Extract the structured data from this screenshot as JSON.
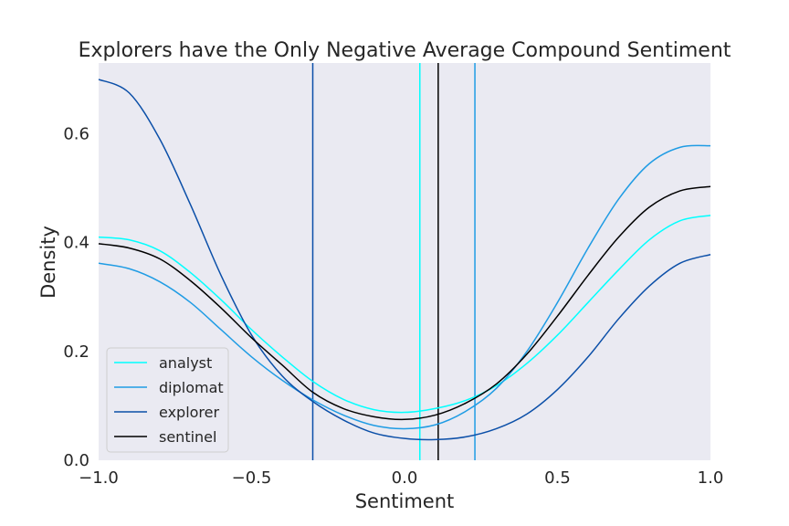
{
  "chart_data": {
    "type": "line",
    "title": "Explorers have the Only Negative Average Compound Sentiment",
    "xlabel": "Sentiment",
    "ylabel": "Density",
    "xlim": [
      -1.0,
      1.0
    ],
    "ylim": [
      0.0,
      0.73
    ],
    "xticks": [
      -1.0,
      -0.5,
      0.0,
      0.5,
      1.0
    ],
    "xtick_labels": [
      "−1.0",
      "−0.5",
      "0.0",
      "0.5",
      "1.0"
    ],
    "yticks": [
      0.0,
      0.2,
      0.4,
      0.6
    ],
    "ytick_labels": [
      "0.0",
      "0.2",
      "0.4",
      "0.6"
    ],
    "grid": false,
    "background_color": "#eaeaf2",
    "legend_position": "lower-left",
    "x": [
      -1.0,
      -0.9,
      -0.8,
      -0.7,
      -0.6,
      -0.5,
      -0.4,
      -0.3,
      -0.2,
      -0.1,
      0.0,
      0.1,
      0.2,
      0.3,
      0.4,
      0.5,
      0.6,
      0.7,
      0.8,
      0.9,
      1.0
    ],
    "series": [
      {
        "name": "analyst",
        "color": "#00ffff",
        "values": [
          0.41,
          0.405,
          0.385,
          0.345,
          0.295,
          0.24,
          0.19,
          0.145,
          0.112,
          0.093,
          0.088,
          0.095,
          0.11,
          0.137,
          0.178,
          0.23,
          0.29,
          0.35,
          0.405,
          0.44,
          0.45
        ],
        "mean": 0.05
      },
      {
        "name": "diplomat",
        "color": "#1f9ce4",
        "values": [
          0.362,
          0.352,
          0.328,
          0.29,
          0.24,
          0.19,
          0.147,
          0.111,
          0.083,
          0.064,
          0.058,
          0.065,
          0.09,
          0.132,
          0.2,
          0.29,
          0.39,
          0.48,
          0.545,
          0.575,
          0.578
        ],
        "mean": 0.23
      },
      {
        "name": "explorer",
        "color": "#0b4fa8",
        "values": [
          0.7,
          0.675,
          0.59,
          0.47,
          0.34,
          0.23,
          0.155,
          0.108,
          0.074,
          0.05,
          0.04,
          0.038,
          0.043,
          0.058,
          0.085,
          0.13,
          0.19,
          0.26,
          0.32,
          0.362,
          0.378
        ],
        "mean": -0.3
      },
      {
        "name": "sentinel",
        "color": "#000000",
        "values": [
          0.398,
          0.39,
          0.37,
          0.33,
          0.28,
          0.225,
          0.175,
          0.125,
          0.095,
          0.08,
          0.075,
          0.083,
          0.105,
          0.14,
          0.195,
          0.265,
          0.34,
          0.41,
          0.465,
          0.495,
          0.503
        ],
        "mean": 0.11
      }
    ]
  }
}
